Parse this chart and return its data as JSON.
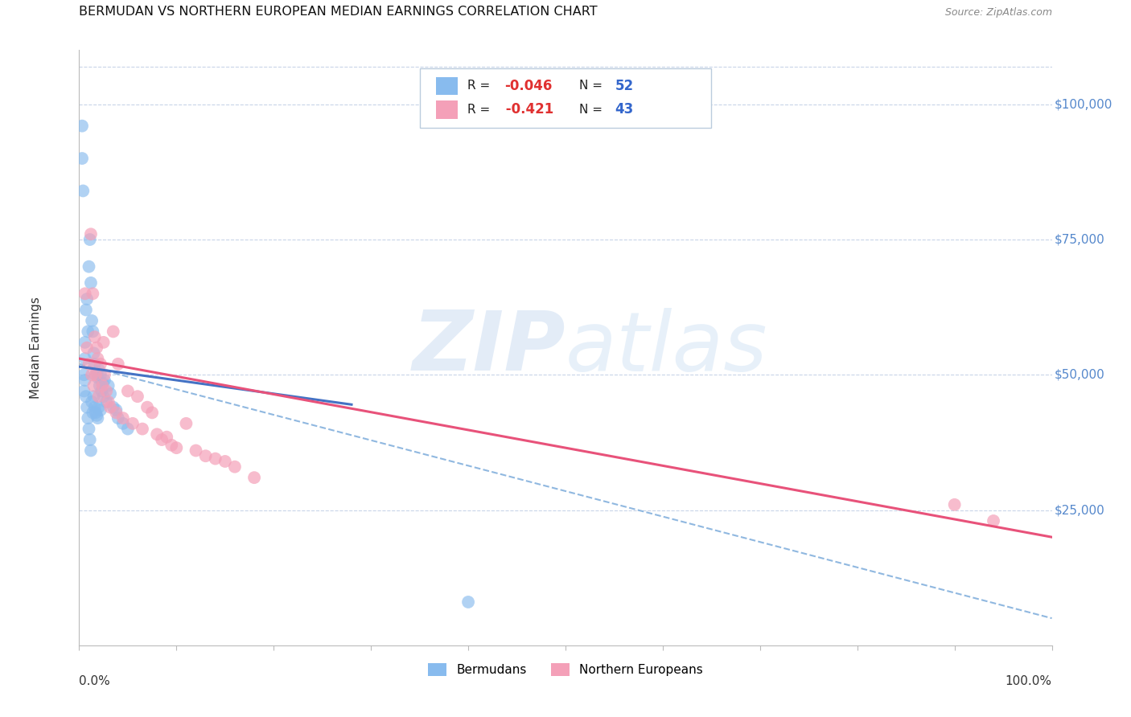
{
  "title": "BERMUDAN VS NORTHERN EUROPEAN MEDIAN EARNINGS CORRELATION CHART",
  "source": "Source: ZipAtlas.com",
  "ylabel": "Median Earnings",
  "ytick_labels": [
    "$25,000",
    "$50,000",
    "$75,000",
    "$100,000"
  ],
  "ytick_values": [
    25000,
    50000,
    75000,
    100000
  ],
  "ymin": 0,
  "ymax": 110000,
  "xmin": 0.0,
  "xmax": 1.0,
  "bermudan_color": "#88bbee",
  "northern_color": "#f4a0b8",
  "bermudan_scatter_x": [
    0.003,
    0.003,
    0.004,
    0.005,
    0.005,
    0.006,
    0.006,
    0.006,
    0.007,
    0.007,
    0.008,
    0.008,
    0.009,
    0.009,
    0.01,
    0.01,
    0.011,
    0.011,
    0.012,
    0.012,
    0.013,
    0.013,
    0.014,
    0.014,
    0.015,
    0.015,
    0.016,
    0.016,
    0.017,
    0.017,
    0.018,
    0.018,
    0.019,
    0.019,
    0.02,
    0.02,
    0.021,
    0.022,
    0.022,
    0.023,
    0.024,
    0.025,
    0.026,
    0.028,
    0.03,
    0.032,
    0.035,
    0.038,
    0.04,
    0.045,
    0.05,
    0.4
  ],
  "bermudan_scatter_y": [
    96000,
    90000,
    84000,
    50000,
    47000,
    56000,
    53000,
    49000,
    62000,
    46000,
    64000,
    44000,
    58000,
    42000,
    70000,
    40000,
    75000,
    38000,
    67000,
    36000,
    60000,
    45000,
    58000,
    43000,
    54000,
    46000,
    52000,
    44000,
    50000,
    43000,
    50500,
    42500,
    49500,
    42000,
    51000,
    44000,
    48000,
    50000,
    43500,
    47000,
    48500,
    46000,
    49000,
    45000,
    48000,
    46500,
    44000,
    43500,
    42000,
    41000,
    40000,
    8000
  ],
  "northern_scatter_x": [
    0.006,
    0.008,
    0.01,
    0.012,
    0.013,
    0.014,
    0.015,
    0.016,
    0.017,
    0.018,
    0.019,
    0.02,
    0.022,
    0.024,
    0.025,
    0.026,
    0.028,
    0.03,
    0.032,
    0.035,
    0.038,
    0.04,
    0.045,
    0.05,
    0.055,
    0.06,
    0.065,
    0.07,
    0.075,
    0.08,
    0.085,
    0.09,
    0.095,
    0.1,
    0.11,
    0.12,
    0.13,
    0.14,
    0.15,
    0.16,
    0.18,
    0.9,
    0.94
  ],
  "northern_scatter_y": [
    65000,
    55000,
    52000,
    76000,
    50000,
    65000,
    48000,
    57000,
    50000,
    55000,
    53000,
    46000,
    52000,
    48000,
    56000,
    50000,
    47000,
    45000,
    44000,
    58000,
    43000,
    52000,
    42000,
    47000,
    41000,
    46000,
    40000,
    44000,
    43000,
    39000,
    38000,
    38500,
    37000,
    36500,
    41000,
    36000,
    35000,
    34500,
    34000,
    33000,
    31000,
    26000,
    23000
  ],
  "bermudan_line_x": [
    0.0,
    0.28
  ],
  "bermudan_line_y": [
    51500,
    44500
  ],
  "northern_line_x": [
    0.0,
    1.0
  ],
  "northern_line_y": [
    53000,
    20000
  ],
  "dashed_line_x": [
    0.0,
    1.0
  ],
  "dashed_line_y": [
    52000,
    5000
  ],
  "bermudan_line_color": "#4472c4",
  "northern_line_color": "#e8527a",
  "dashed_line_color": "#90b8e0",
  "background_color": "#ffffff",
  "grid_color": "#c8d4e8",
  "legend_r1": "R = -0.046",
  "legend_n1": "N = 52",
  "legend_r2": "R =  -0.421",
  "legend_n2": "N = 43",
  "legend_label1": "Bermudans",
  "legend_label2": "Northern Europeans",
  "r_color": "#e03030",
  "n_color": "#3366cc"
}
